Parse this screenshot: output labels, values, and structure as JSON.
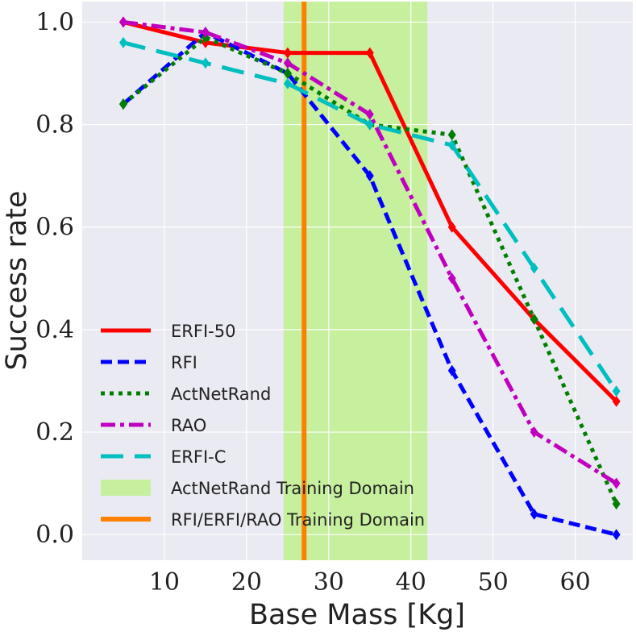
{
  "chart_data": {
    "type": "line",
    "title": "",
    "xlabel": "Base Mass [Kg]",
    "ylabel": "Success rate",
    "xlim": [
      0,
      67
    ],
    "ylim": [
      -0.05,
      1.04
    ],
    "xticks": [
      10,
      20,
      30,
      40,
      50,
      60
    ],
    "xtick_labels": [
      "10",
      "20",
      "30",
      "40",
      "50",
      "60"
    ],
    "yticks": [
      0.0,
      0.2,
      0.4,
      0.6,
      0.8,
      1.0
    ],
    "ytick_labels": [
      "0.0",
      "0.2",
      "0.4",
      "0.6",
      "0.8",
      "1.0"
    ],
    "grid": true,
    "legend_position": "bottom-left",
    "x": [
      5,
      15,
      25,
      35,
      45,
      55,
      65
    ],
    "series": [
      {
        "name": "ERFI-50",
        "color": "#ff0000",
        "style": "solid",
        "marker": "diamond",
        "values": [
          1.0,
          0.96,
          0.94,
          0.94,
          0.6,
          0.42,
          0.26
        ]
      },
      {
        "name": "RFI",
        "color": "#0000ff",
        "style": "dashed",
        "marker": "diamond",
        "values": [
          0.84,
          0.98,
          0.9,
          0.7,
          0.32,
          0.04,
          0.0
        ]
      },
      {
        "name": "ActNetRand",
        "color": "#007f00",
        "style": "dotted",
        "marker": "diamond",
        "values": [
          0.84,
          0.97,
          0.9,
          0.8,
          0.78,
          0.42,
          0.06
        ]
      },
      {
        "name": "RAO",
        "color": "#bf00bf",
        "style": "dashdot",
        "marker": "diamond",
        "values": [
          1.0,
          0.98,
          0.92,
          0.82,
          0.5,
          0.2,
          0.1
        ]
      },
      {
        "name": "ERFI-C",
        "color": "#00bfbf",
        "style": "longdash",
        "marker": "diamond",
        "values": [
          0.96,
          0.92,
          0.88,
          0.8,
          0.76,
          0.52,
          0.28
        ]
      }
    ],
    "shaded_regions": [
      {
        "name": "ActNetRand Training Domain",
        "color": "#c6ef9e",
        "xmin": 24.5,
        "xmax": 42
      }
    ],
    "vertical_lines": [
      {
        "name": "RFI/ERFI/RAO Training Domain",
        "color": "#ff8000",
        "x": 27
      }
    ]
  }
}
